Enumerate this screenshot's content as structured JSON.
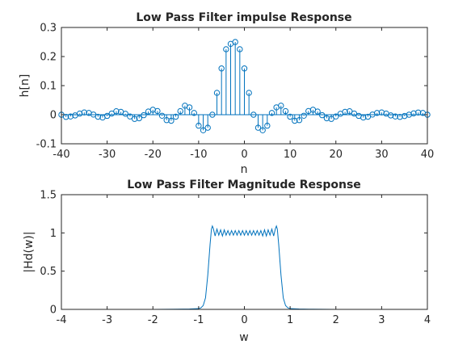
{
  "chart_data": [
    {
      "type": "stem",
      "title": "Low Pass Filter impulse Response",
      "xlabel": "n",
      "ylabel": "h[n]",
      "xlim": [
        -40,
        40
      ],
      "ylim": [
        -0.1,
        0.3
      ],
      "xticks": [
        -40,
        -30,
        -20,
        -10,
        0,
        10,
        20,
        30,
        40
      ],
      "yticks": [
        -0.1,
        0,
        0.1,
        0.2,
        0.3
      ],
      "xtick_labels": [
        "-40",
        "-30",
        "-20",
        "-10",
        "0",
        "10",
        "20",
        "30",
        "40"
      ],
      "ytick_labels": [
        "-0.1",
        "0",
        "0.1",
        "0.2",
        "0.3"
      ],
      "color": "#0072bd",
      "grid": false,
      "marker": "circle",
      "x_start": -40,
      "values": [
        0.0,
        -0.0075,
        -0.0061,
        -0.0024,
        0.0039,
        0.0078,
        0.0061,
        0.0006,
        -0.007,
        -0.0096,
        -0.0041,
        0.0041,
        0.0119,
        0.0097,
        0.0033,
        -0.0061,
        -0.0145,
        -0.0122,
        -0.0017,
        0.0109,
        0.017,
        0.0126,
        -0.0036,
        -0.0187,
        -0.0208,
        -0.0069,
        0.0123,
        0.0311,
        0.0252,
        0.0061,
        -0.0378,
        -0.0536,
        -0.0448,
        0.0,
        0.0751,
        0.1591,
        0.2251,
        0.2436,
        0.25,
        0.2251,
        0.1591,
        0.0751,
        0.0,
        -0.0448,
        -0.0536,
        -0.0378,
        0.0061,
        0.0252,
        0.0311,
        0.0123,
        -0.0069,
        -0.0208,
        -0.0187,
        -0.0036,
        0.0126,
        0.017,
        0.0109,
        -0.0017,
        -0.0122,
        -0.0145,
        -0.0061,
        0.0033,
        0.0097,
        0.0119,
        0.0041,
        -0.0041,
        -0.0096,
        -0.007,
        0.0006,
        0.0061,
        0.0078,
        0.0039,
        -0.0024,
        -0.0061,
        -0.0075,
        -0.0045,
        0.0,
        0.0045,
        0.0075,
        0.0061,
        0.0
      ]
    },
    {
      "type": "line",
      "title": "Low Pass Filter Magnitude Response",
      "xlabel": "w",
      "ylabel": "|Hd(w)|",
      "xlim": [
        -4,
        4
      ],
      "ylim": [
        0,
        1.5
      ],
      "xticks": [
        -4,
        -3,
        -2,
        -1,
        0,
        1,
        2,
        3,
        4
      ],
      "yticks": [
        0,
        0.5,
        1,
        1.5
      ],
      "xtick_labels": [
        "-4",
        "-3",
        "-2",
        "-1",
        "0",
        "1",
        "2",
        "3",
        "4"
      ],
      "ytick_labels": [
        "0",
        "0.5",
        "1",
        "1.5"
      ],
      "color": "#0072bd",
      "grid": false,
      "x": [
        -3.1416,
        -2.5,
        -2.0,
        -1.5,
        -1.2,
        -1.0,
        -0.95,
        -0.9,
        -0.85,
        -0.8,
        -0.75,
        -0.72,
        -0.7,
        -0.68,
        -0.64,
        -0.6,
        -0.56,
        -0.52,
        -0.48,
        -0.44,
        -0.4,
        -0.36,
        -0.32,
        -0.28,
        -0.24,
        -0.2,
        -0.16,
        -0.12,
        -0.08,
        -0.04,
        0.0,
        0.04,
        0.08,
        0.12,
        0.16,
        0.2,
        0.24,
        0.28,
        0.32,
        0.36,
        0.4,
        0.44,
        0.48,
        0.52,
        0.56,
        0.6,
        0.64,
        0.68,
        0.7,
        0.72,
        0.75,
        0.8,
        0.85,
        0.9,
        0.95,
        1.0,
        1.2,
        1.5,
        2.0,
        2.5,
        3.1416
      ],
      "y": [
        0.0,
        0.0,
        0.0,
        0.002,
        0.005,
        0.01,
        0.02,
        0.05,
        0.15,
        0.45,
        0.85,
        1.05,
        1.09,
        1.06,
        0.96,
        1.05,
        0.97,
        1.04,
        0.96,
        1.04,
        0.97,
        1.03,
        0.97,
        1.03,
        0.97,
        1.03,
        0.97,
        1.03,
        0.97,
        1.03,
        0.97,
        1.03,
        0.97,
        1.03,
        0.97,
        1.03,
        0.97,
        1.03,
        0.97,
        1.03,
        0.96,
        1.04,
        0.96,
        1.04,
        0.97,
        1.05,
        0.96,
        1.06,
        1.09,
        1.05,
        0.85,
        0.45,
        0.15,
        0.05,
        0.02,
        0.01,
        0.005,
        0.002,
        0.0,
        0.0,
        0.0
      ]
    }
  ]
}
